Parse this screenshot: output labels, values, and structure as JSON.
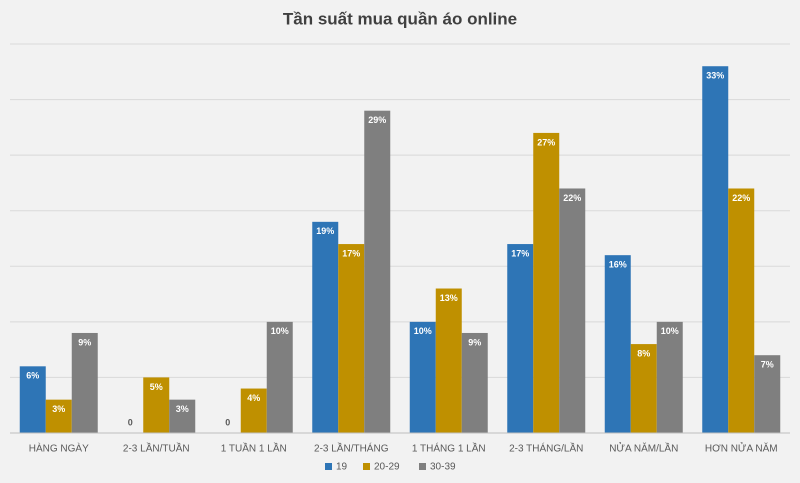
{
  "chart_data": {
    "type": "bar",
    "title": "Tần suất mua quần áo online",
    "categories": [
      "HÀNG NGÀY",
      "2-3 LẦN/TUẦN",
      "1 TUẦN 1 LẦN",
      "2-3 LẦN/THÁNG",
      "1 THÁNG 1 LẦN",
      "2-3 THÁNG/LẦN",
      "NỬA NĂM/LẦN",
      "HƠN NỬA NĂM"
    ],
    "series": [
      {
        "name": "19",
        "color": "#2e75b6",
        "values": [
          6,
          0,
          0,
          19,
          10,
          17,
          16,
          33
        ],
        "value_labels": [
          "6%",
          "0",
          "0",
          "19%",
          "10%",
          "17%",
          "16%",
          "33%"
        ]
      },
      {
        "name": "20-29",
        "color": "#bf9000",
        "values": [
          3,
          5,
          4,
          17,
          13,
          27,
          8,
          22
        ],
        "value_labels": [
          "3%",
          "5%",
          "4%",
          "17%",
          "13%",
          "27%",
          "8%",
          "22%"
        ]
      },
      {
        "name": "30-39",
        "color": "#7f7f7f",
        "values": [
          9,
          3,
          10,
          29,
          9,
          22,
          10,
          7
        ],
        "value_labels": [
          "9%",
          "3%",
          "10%",
          "29%",
          "9%",
          "22%",
          "10%",
          "7%"
        ]
      }
    ],
    "ylim": [
      0,
      35
    ],
    "yticks": [
      0,
      5,
      10,
      15,
      20,
      25,
      30,
      35
    ],
    "grid": true,
    "legend": "bottom"
  }
}
